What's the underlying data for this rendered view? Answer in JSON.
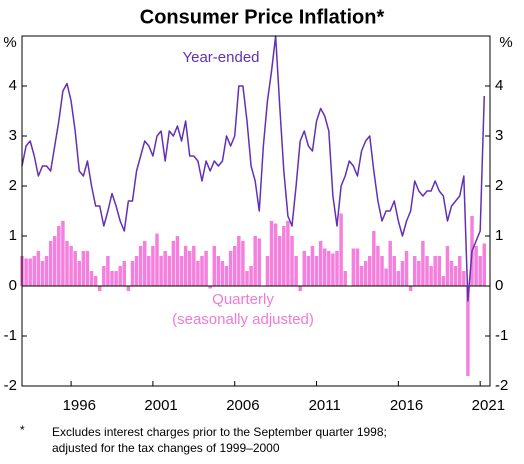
{
  "chart_data": {
    "type": "bar-line",
    "title": "Consumer Price Inflation*",
    "y_unit": "%",
    "annotations": [
      "Year-ended",
      "Quarterly",
      "(seasonally adjusted)"
    ],
    "footnote": {
      "marker": "*",
      "lines": [
        "Excludes interest charges prior to the September quarter 1998;",
        "adjusted for the tax changes of 1999–2000"
      ]
    },
    "xlim": [
      1993,
      2021.6
    ],
    "xticks": [
      1996,
      2001,
      2006,
      2011,
      2016,
      2021
    ],
    "ylim": [
      -2,
      5
    ],
    "yticks": [
      -2,
      -1,
      0,
      1,
      2,
      3,
      4
    ],
    "x": [
      1993,
      1993.25,
      1993.5,
      1993.75,
      1994,
      1994.25,
      1994.5,
      1994.75,
      1995,
      1995.25,
      1995.5,
      1995.75,
      1996,
      1996.25,
      1996.5,
      1996.75,
      1997,
      1997.25,
      1997.5,
      1997.75,
      1998,
      1998.25,
      1998.5,
      1998.75,
      1999,
      1999.25,
      1999.5,
      1999.75,
      2000,
      2000.25,
      2000.5,
      2000.75,
      2001,
      2001.25,
      2001.5,
      2001.75,
      2002,
      2002.25,
      2002.5,
      2002.75,
      2003,
      2003.25,
      2003.5,
      2003.75,
      2004,
      2004.25,
      2004.5,
      2004.75,
      2005,
      2005.25,
      2005.5,
      2005.75,
      2006,
      2006.25,
      2006.5,
      2006.75,
      2007,
      2007.25,
      2007.5,
      2007.75,
      2008,
      2008.25,
      2008.5,
      2008.75,
      2009,
      2009.25,
      2009.5,
      2009.75,
      2010,
      2010.25,
      2010.5,
      2010.75,
      2011,
      2011.25,
      2011.5,
      2011.75,
      2012,
      2012.25,
      2012.5,
      2012.75,
      2013,
      2013.25,
      2013.5,
      2013.75,
      2014,
      2014.25,
      2014.5,
      2014.75,
      2015,
      2015.25,
      2015.5,
      2015.75,
      2016,
      2016.25,
      2016.5,
      2016.75,
      2017,
      2017.25,
      2017.5,
      2017.75,
      2018,
      2018.25,
      2018.5,
      2018.75,
      2019,
      2019.25,
      2019.5,
      2019.75,
      2020,
      2020.25,
      2020.5,
      2020.75,
      2021,
      2021.25
    ],
    "series": [
      {
        "name": "Year-ended",
        "kind": "line",
        "color": "#6330b5",
        "values": [
          2.4,
          2.8,
          2.9,
          2.6,
          2.2,
          2.4,
          2.4,
          2.3,
          2.8,
          3.3,
          3.9,
          4.05,
          3.7,
          3.1,
          2.3,
          2.2,
          2.5,
          2.0,
          1.6,
          1.6,
          1.2,
          1.5,
          1.85,
          1.6,
          1.3,
          1.1,
          1.7,
          1.7,
          2.3,
          2.6,
          2.9,
          2.8,
          2.6,
          3.0,
          3.1,
          2.5,
          3.1,
          3.0,
          3.2,
          2.9,
          3.3,
          2.6,
          2.6,
          2.5,
          2.1,
          2.5,
          2.3,
          2.5,
          2.4,
          2.5,
          3.0,
          2.8,
          3.0,
          4.0,
          4.0,
          3.3,
          2.4,
          2.1,
          1.5,
          2.8,
          3.7,
          4.3,
          5.0,
          3.6,
          2.3,
          1.4,
          1.2,
          2.0,
          2.9,
          3.1,
          2.8,
          2.7,
          3.3,
          3.55,
          3.4,
          3.1,
          1.8,
          1.2,
          2.0,
          2.2,
          2.5,
          2.4,
          2.2,
          2.7,
          2.9,
          3.0,
          2.3,
          1.7,
          1.3,
          1.5,
          1.5,
          1.7,
          1.3,
          1.0,
          1.3,
          1.5,
          2.1,
          1.9,
          1.8,
          1.9,
          1.9,
          2.1,
          1.9,
          1.8,
          1.3,
          1.6,
          1.7,
          1.8,
          2.2,
          -0.3,
          0.7,
          0.9,
          1.1,
          3.8
        ]
      },
      {
        "name": "Quarterly",
        "kind": "bar",
        "color": "#f57fdc",
        "values": [
          0.6,
          0.55,
          0.55,
          0.6,
          0.7,
          0.5,
          0.6,
          0.9,
          1.0,
          1.2,
          1.3,
          0.9,
          0.8,
          0.7,
          0.5,
          0.7,
          0.7,
          0.3,
          0.2,
          -0.1,
          0.4,
          0.6,
          0.3,
          0.3,
          0.4,
          0.5,
          -0.1,
          0.5,
          0.6,
          0.8,
          0.9,
          0.6,
          0.8,
          1.05,
          0.6,
          0.7,
          0.6,
          0.9,
          1.0,
          0.6,
          0.8,
          0.7,
          0.8,
          0.5,
          0.6,
          0.7,
          -0.05,
          0.8,
          0.6,
          0.5,
          0.4,
          0.7,
          0.8,
          1.0,
          0.9,
          0.3,
          0.4,
          1.0,
          0.95,
          0.0,
          0.6,
          1.3,
          1.25,
          1.0,
          1.2,
          1.3,
          1.0,
          0.6,
          -0.1,
          0.7,
          0.6,
          0.8,
          0.6,
          0.9,
          0.75,
          0.7,
          0.65,
          0.7,
          1.45,
          0.3,
          0.0,
          0.75,
          0.75,
          0.4,
          0.5,
          0.6,
          1.1,
          0.8,
          0.6,
          0.35,
          0.9,
          0.6,
          0.3,
          0.5,
          0.7,
          -0.1,
          0.6,
          0.5,
          0.9,
          0.6,
          0.4,
          0.6,
          0.6,
          0.2,
          0.8,
          0.5,
          0.4,
          0.6,
          0.3,
          -1.8,
          1.4,
          0.8,
          0.6,
          0.85
        ]
      }
    ]
  }
}
